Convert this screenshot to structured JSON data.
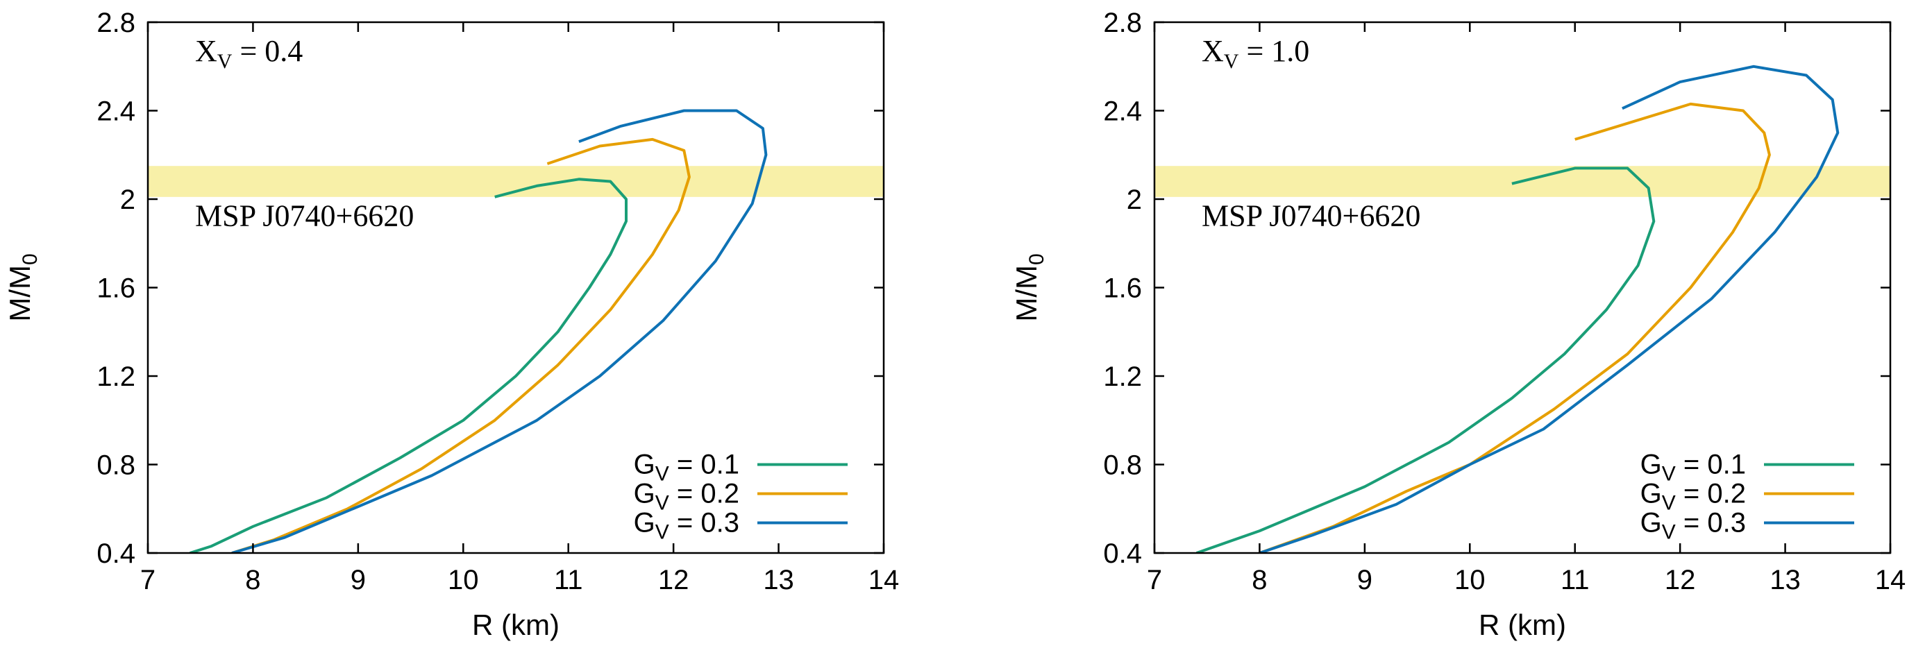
{
  "chart_data": [
    {
      "type": "line",
      "title": "",
      "xlabel": "R  (km)",
      "ylabel": "M/M",
      "ylabel_sub": "0",
      "xlim": [
        7,
        14
      ],
      "ylim": [
        0.4,
        2.8
      ],
      "xticks": [
        7,
        8,
        9,
        10,
        11,
        12,
        13,
        14
      ],
      "yticks": [
        0.4,
        0.8,
        1.2,
        1.6,
        2,
        2.4,
        2.8
      ],
      "ytick_labels": [
        "0.4",
        "0.8",
        "1.2",
        "1.6",
        "2",
        "2.4",
        "2.8"
      ],
      "grid": false,
      "legend_position": "bottom-right",
      "annotation": {
        "main": "X",
        "sub": "V",
        "rest": " = 0.4"
      },
      "band": {
        "label": "MSP J0740+6620",
        "ymin": 2.01,
        "ymax": 2.15,
        "color": "#f8f0a8"
      },
      "series": [
        {
          "legend": {
            "main": "G",
            "sub": "V",
            "rest": " = 0.1"
          },
          "color": "#1a9e77",
          "x": [
            7.4,
            7.6,
            8.0,
            8.7,
            9.4,
            10.0,
            10.5,
            10.9,
            11.2,
            11.4,
            11.55,
            11.55,
            11.4,
            11.1,
            10.7,
            10.3
          ],
          "y": [
            0.4,
            0.43,
            0.52,
            0.65,
            0.83,
            1.0,
            1.2,
            1.4,
            1.6,
            1.75,
            1.9,
            2.0,
            2.08,
            2.09,
            2.06,
            2.01
          ]
        },
        {
          "legend": {
            "main": "G",
            "sub": "V",
            "rest": " = 0.2"
          },
          "color": "#e69f00",
          "x": [
            7.8,
            8.2,
            8.9,
            9.6,
            10.3,
            10.9,
            11.4,
            11.8,
            12.05,
            12.15,
            12.1,
            11.8,
            11.3,
            10.8
          ],
          "y": [
            0.4,
            0.46,
            0.6,
            0.78,
            1.0,
            1.25,
            1.5,
            1.75,
            1.95,
            2.1,
            2.22,
            2.27,
            2.24,
            2.16
          ]
        },
        {
          "legend": {
            "main": "G",
            "sub": "V",
            "rest": " = 0.3"
          },
          "color": "#0e72b5",
          "x": [
            7.8,
            8.3,
            9.0,
            9.7,
            10.7,
            11.3,
            11.9,
            12.4,
            12.75,
            12.88,
            12.85,
            12.6,
            12.1,
            11.5,
            11.1
          ],
          "y": [
            0.4,
            0.47,
            0.61,
            0.75,
            1.0,
            1.2,
            1.45,
            1.72,
            1.98,
            2.2,
            2.32,
            2.4,
            2.4,
            2.33,
            2.26
          ]
        }
      ]
    },
    {
      "type": "line",
      "title": "",
      "xlabel": "R  (km)",
      "ylabel": "M/M",
      "ylabel_sub": "0",
      "xlim": [
        7,
        14
      ],
      "ylim": [
        0.4,
        2.8
      ],
      "xticks": [
        7,
        8,
        9,
        10,
        11,
        12,
        13,
        14
      ],
      "yticks": [
        0.4,
        0.8,
        1.2,
        1.6,
        2,
        2.4,
        2.8
      ],
      "ytick_labels": [
        "0.4",
        "0.8",
        "1.2",
        "1.6",
        "2",
        "2.4",
        "2.8"
      ],
      "grid": false,
      "legend_position": "bottom-right",
      "annotation": {
        "main": "X",
        "sub": "V",
        "rest": " = 1.0"
      },
      "band": {
        "label": "MSP J0740+6620",
        "ymin": 2.01,
        "ymax": 2.15,
        "color": "#f8f0a8"
      },
      "series": [
        {
          "legend": {
            "main": "G",
            "sub": "V",
            "rest": " = 0.1"
          },
          "color": "#1a9e77",
          "x": [
            7.4,
            8.0,
            9.0,
            9.8,
            10.4,
            10.9,
            11.3,
            11.6,
            11.75,
            11.7,
            11.5,
            11.0,
            10.4
          ],
          "y": [
            0.4,
            0.5,
            0.7,
            0.9,
            1.1,
            1.3,
            1.5,
            1.7,
            1.9,
            2.05,
            2.14,
            2.14,
            2.07
          ]
        },
        {
          "legend": {
            "main": "G",
            "sub": "V",
            "rest": " = 0.2"
          },
          "color": "#e69f00",
          "x": [
            8.0,
            8.7,
            9.4,
            10.0,
            10.8,
            11.5,
            12.1,
            12.5,
            12.75,
            12.85,
            12.8,
            12.6,
            12.1,
            11.0
          ],
          "y": [
            0.4,
            0.52,
            0.68,
            0.8,
            1.05,
            1.3,
            1.6,
            1.85,
            2.05,
            2.2,
            2.3,
            2.4,
            2.43,
            2.27
          ]
        },
        {
          "legend": {
            "main": "G",
            "sub": "V",
            "rest": " = 0.3"
          },
          "color": "#0e72b5",
          "x": [
            8.0,
            8.5,
            9.3,
            10.0,
            10.7,
            11.5,
            12.3,
            12.9,
            13.3,
            13.5,
            13.45,
            13.2,
            12.7,
            12.0,
            11.45
          ],
          "y": [
            0.4,
            0.48,
            0.62,
            0.8,
            0.96,
            1.25,
            1.55,
            1.85,
            2.1,
            2.3,
            2.45,
            2.56,
            2.6,
            2.53,
            2.41
          ]
        }
      ]
    }
  ]
}
